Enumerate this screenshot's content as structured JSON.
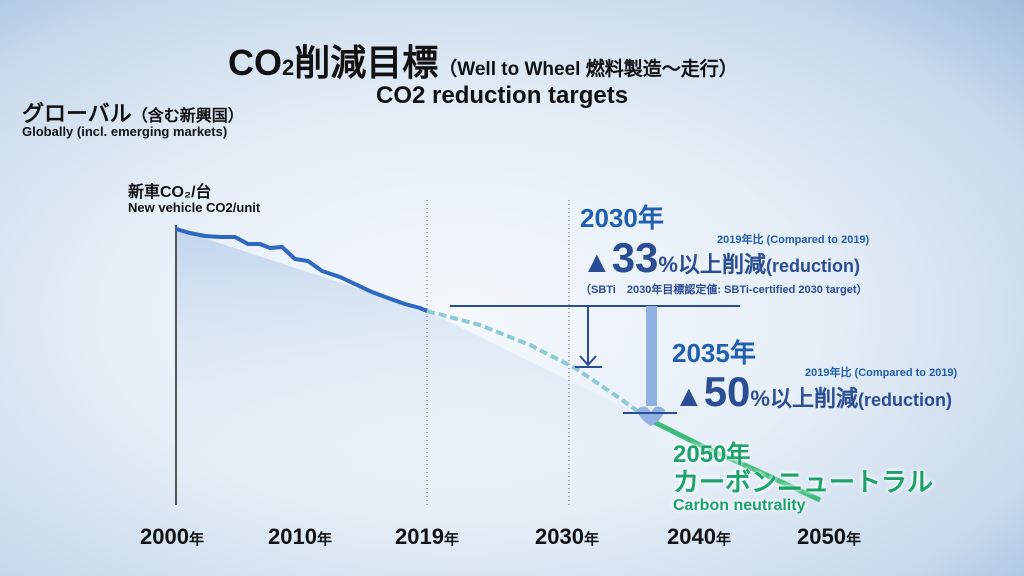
{
  "header": {
    "title_main": "CO",
    "title_sub": "2",
    "title_jp": "削減目標",
    "title_paren": "（Well to Wheel 燃料製造～走行）",
    "subtitle": "CO2 reduction targets"
  },
  "region": {
    "jp": "グローバル",
    "jp_paren": "（含む新興国）",
    "en": "Globally (incl. emerging markets)"
  },
  "y_axis": {
    "jp": "新車CO₂/台",
    "en": "New vehicle CO2/unit"
  },
  "target_2030": {
    "year": "2030年",
    "compare": "2019年比 (Compared to 2019)",
    "mark": "▲",
    "value": "33",
    "unit": "%以上削減",
    "en": "(reduction)",
    "note": "（SBTi　2030年目標認定値: SBTi-certified 2030 target）",
    "reduction_percent": 33
  },
  "target_2035": {
    "year": "2035年",
    "compare": "2019年比 (Compared to 2019)",
    "mark": "▲",
    "value": "50",
    "unit": "%以上削減",
    "en": "(reduction)",
    "reduction_percent": 50
  },
  "target_2050": {
    "year": "2050年",
    "jp": "カーボンニュートラル",
    "en": "Carbon neutrality"
  },
  "chart_data": {
    "type": "line",
    "x_ticks": [
      {
        "num": "2000",
        "unit": "年"
      },
      {
        "num": "2010",
        "unit": "年"
      },
      {
        "num": "2019",
        "unit": "年"
      },
      {
        "num": "2030",
        "unit": "年"
      },
      {
        "num": "2040",
        "unit": "年"
      },
      {
        "num": "2050",
        "unit": "年"
      }
    ],
    "series": [
      {
        "segment": "actual",
        "style": "solid",
        "color": "#2f68c0"
      },
      {
        "segment": "to-2035",
        "style": "dashed",
        "color": "#8ccbd6"
      },
      {
        "segment": "to-2050",
        "style": "solid",
        "color": "#3dbb7a"
      }
    ]
  }
}
